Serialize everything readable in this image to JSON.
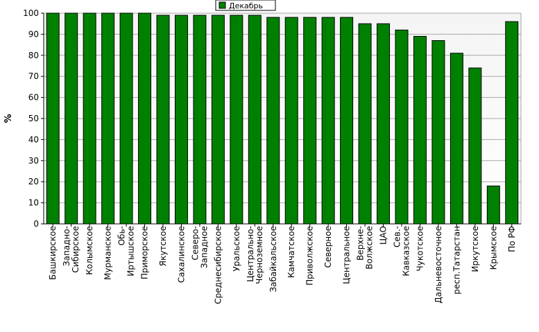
{
  "chart_data": {
    "type": "bar",
    "ylabel": "%",
    "xlabel": "",
    "ylim": [
      0,
      100
    ],
    "yticks": [
      0,
      10,
      20,
      30,
      40,
      50,
      60,
      70,
      80,
      90,
      100
    ],
    "grid": true,
    "legend": "top-center",
    "bar_color": "#008000",
    "categories": [
      "Башкирское",
      "Западно-\nСибирское",
      "Колымское",
      "Мурманское",
      "Обь-\nИртышское",
      "Приморское",
      "Якутское",
      "Сахалинское",
      "Северо-\nЗападное",
      "Среднесибирское",
      "Уральское",
      "Центрально-\nЧерноземное",
      "Забайкальское",
      "Камчатское",
      "Приволжское",
      "Северное",
      "Центральное",
      "Верхне-\nВолжское",
      "ЦАО",
      "Сев.-\nКавказское",
      "Чукотское",
      "Дальневосточное",
      "респ.Татарстан",
      "Иркутское",
      "Крымское",
      "По РФ"
    ],
    "series": [
      {
        "name": "Декабрь",
        "values": [
          100,
          100,
          100,
          100,
          100,
          100,
          99,
          99,
          99,
          99,
          99,
          99,
          98,
          98,
          98,
          98,
          98,
          95,
          95,
          92,
          89,
          87,
          81,
          74,
          18,
          96
        ]
      }
    ]
  }
}
